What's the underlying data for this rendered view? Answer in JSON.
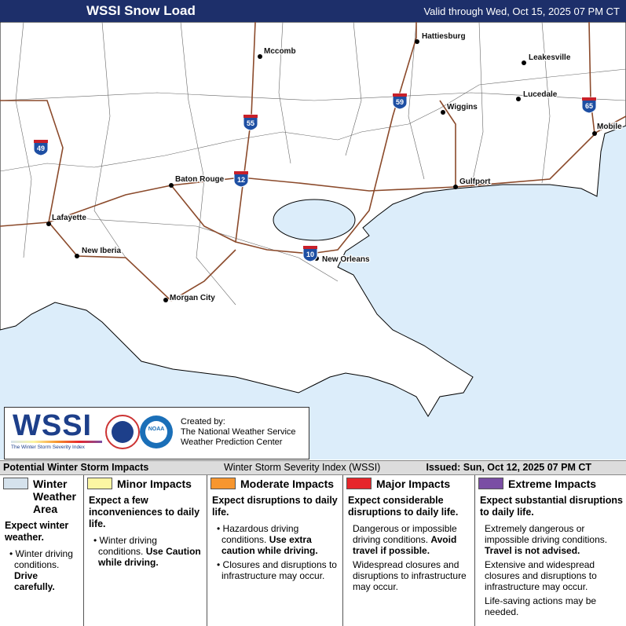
{
  "header": {
    "title": "WSSI Snow Load",
    "valid": "Valid through Wed, Oct 15, 2025 07 PM CT"
  },
  "map": {
    "cities": [
      "Hattiesburg",
      "Mccomb",
      "Leakesville",
      "Lucedale",
      "Wiggins",
      "Mobile",
      "Baton Rouge",
      "Gulfport",
      "Lafayette",
      "New Iberia",
      "New Orleans",
      "Morgan City"
    ],
    "interstates": [
      "49",
      "55",
      "59",
      "12",
      "10",
      "65"
    ]
  },
  "logo": {
    "wssi": "WSSI",
    "subtitle": "The Winter Storm Severity Index",
    "created_by": "Created by:",
    "line1": "The National Weather Service",
    "line2": "Weather Prediction Center",
    "noaa": "NOAA"
  },
  "info_bar": {
    "left": "Potential Winter Storm Impacts",
    "center": "Winter Storm Severity Index (WSSI)",
    "right": "Issued: Sun, Oct 12, 2025 07 PM CT"
  },
  "legend": [
    {
      "name": "Winter Weather Area",
      "color": "#d5e2ec",
      "headline": "Expect winter weather.",
      "bulleted": true,
      "bullets": [
        {
          "text": "Winter driving conditions.",
          "bold": "Drive carefully."
        }
      ]
    },
    {
      "name": "Minor Impacts",
      "color": "#fcf6a3",
      "headline": "Expect a few inconveniences to daily life.",
      "bulleted": true,
      "bullets": [
        {
          "text": "Winter driving conditions.",
          "bold": "Use Caution while driving."
        }
      ]
    },
    {
      "name": "Moderate Impacts",
      "color": "#f7962f",
      "headline": "Expect disruptions to daily life.",
      "bulleted": true,
      "bullets": [
        {
          "text": "Hazardous driving conditions.",
          "bold": "Use extra caution while driving."
        },
        {
          "text": "Closures and disruptions to infrastructure may occur."
        }
      ]
    },
    {
      "name": "Major Impacts",
      "color": "#e6262b",
      "headline": "Expect considerable disruptions to daily life.",
      "bulleted": false,
      "bullets": [
        {
          "text": "Dangerous or impossible driving conditions.",
          "bold": "Avoid travel if possible."
        },
        {
          "text": "Widespread closures and disruptions to infrastructure may occur."
        }
      ]
    },
    {
      "name": "Extreme Impacts",
      "color": "#7a4ea4",
      "headline": "Expect substantial disruptions to daily life.",
      "bulleted": false,
      "bullets": [
        {
          "text": "Extremely dangerous or impossible driving conditions.",
          "bold": "Travel is not advised."
        },
        {
          "text": "Extensive and widespread closures and disruptions to infrastructure may occur."
        },
        {
          "text": "Life-saving actions may be needed."
        }
      ]
    }
  ]
}
